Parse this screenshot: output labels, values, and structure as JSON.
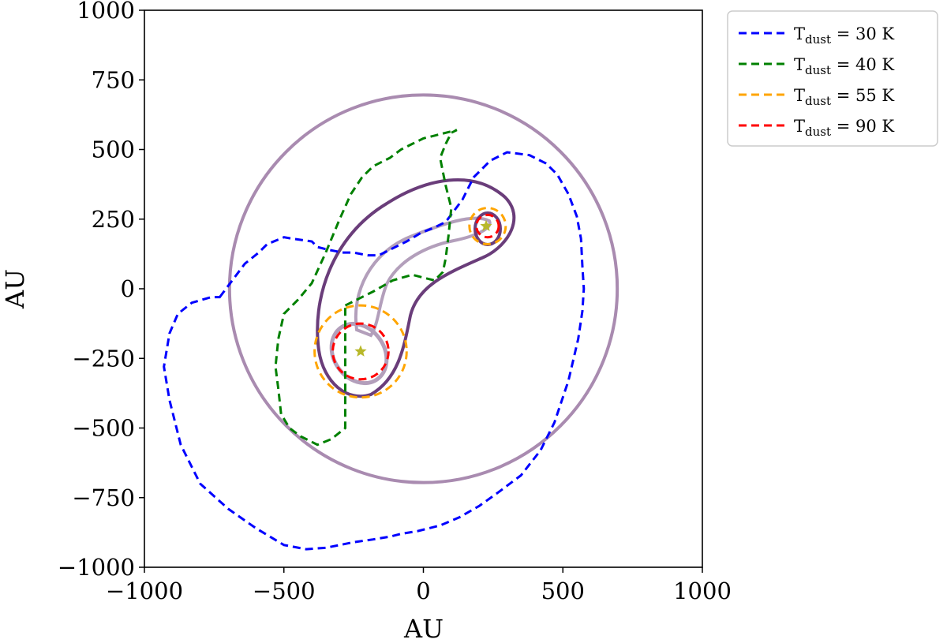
{
  "chart_data": {
    "type": "line",
    "xlabel": "AU",
    "ylabel": "AU",
    "xlim": [
      -1000,
      1000
    ],
    "ylim": [
      -1000,
      1000
    ],
    "xticks": [
      "−1000",
      "−500",
      "0",
      "500",
      "1000"
    ],
    "xtick_values": [
      -1000,
      -500,
      0,
      500,
      1000
    ],
    "yticks": [
      "1000",
      "750",
      "500",
      "250",
      "0",
      "−250",
      "−500",
      "−750",
      "−1000"
    ],
    "ytick_values": [
      1000,
      750,
      500,
      250,
      0,
      -250,
      -500,
      -750,
      -1000
    ],
    "grid": false,
    "legend_position": "outside-top-right",
    "legend": [
      {
        "prefix": "T",
        "subscript": "dust",
        "suffix": " = 30 K",
        "color": "#0000ff",
        "dash": true
      },
      {
        "prefix": "T",
        "subscript": "dust",
        "suffix": " = 40 K",
        "color": "#008000",
        "dash": true
      },
      {
        "prefix": "T",
        "subscript": "dust",
        "suffix": " = 55 K",
        "color": "#ffa500",
        "dash": true
      },
      {
        "prefix": "T",
        "subscript": "dust",
        "suffix": " = 90 K",
        "color": "#ff0000",
        "dash": true
      }
    ],
    "series": [
      {
        "name": "T_dust = 30 K",
        "color": "#0000ff",
        "style": "dashed",
        "x": [
          -730,
          -640,
          -590,
          -560,
          -500,
          -470,
          -400,
          -380,
          -340,
          -290,
          -250,
          -200,
          -160,
          -120,
          -80,
          -60,
          -10,
          40,
          80,
          110,
          140,
          180,
          240,
          300,
          380,
          440,
          480,
          520,
          550,
          565,
          570,
          575,
          570,
          555,
          520,
          470,
          420,
          350,
          270,
          200,
          130,
          60,
          -20,
          -80,
          -120,
          -180,
          -250,
          -300,
          -350,
          -420,
          -500,
          -600,
          -700,
          -800,
          -870,
          -910,
          -930,
          -910,
          -880,
          -830,
          -760
        ],
        "y": [
          -30,
          90,
          130,
          160,
          185,
          180,
          170,
          150,
          140,
          130,
          130,
          120,
          120,
          140,
          160,
          170,
          200,
          220,
          240,
          280,
          320,
          400,
          460,
          490,
          480,
          450,
          410,
          340,
          260,
          180,
          80,
          0,
          -80,
          -180,
          -330,
          -480,
          -580,
          -670,
          -730,
          -780,
          -820,
          -850,
          -870,
          -880,
          -890,
          -900,
          -910,
          -920,
          -930,
          -935,
          -920,
          -860,
          -790,
          -700,
          -560,
          -400,
          -280,
          -160,
          -90,
          -50,
          -30
        ]
      },
      {
        "name": "T_dust = 40 K",
        "color": "#008000",
        "style": "dashed",
        "x": [
          -280,
          -180,
          -110,
          -40,
          0,
          40,
          70,
          80,
          90,
          100,
          80,
          70,
          60,
          80,
          100,
          120,
          80,
          40,
          0,
          -40,
          -80,
          -120,
          -180,
          -220,
          -260,
          -300,
          -350,
          -400,
          -450,
          -500,
          -520,
          -530,
          -520,
          -510,
          -480,
          -440,
          -380,
          -330,
          -280
        ],
        "y": [
          -60,
          -10,
          30,
          50,
          40,
          30,
          60,
          110,
          190,
          290,
          370,
          420,
          470,
          520,
          560,
          570,
          560,
          550,
          540,
          520,
          500,
          470,
          440,
          400,
          340,
          250,
          130,
          20,
          -40,
          -90,
          -180,
          -280,
          -360,
          -450,
          -500,
          -530,
          -560,
          -540,
          -500
        ],
        "transform": "rotated"
      },
      {
        "name": "T_dust = 55 K",
        "color": "#ffa500",
        "style": "dashed",
        "shape": "circles",
        "circles": [
          {
            "cx": 230,
            "cy": 225,
            "r": 65
          },
          {
            "cx": -225,
            "cy": -225,
            "r": 165
          }
        ]
      },
      {
        "name": "T_dust = 90 K",
        "color": "#ff0000",
        "style": "dashed",
        "shape": "circles",
        "circles": [
          {
            "cx": 230,
            "cy": 225,
            "r": 40
          },
          {
            "cx": -225,
            "cy": -225,
            "r": 100
          }
        ]
      }
    ],
    "reference_circle": {
      "cx": 0,
      "cy": 0,
      "r": 695,
      "color": "#a98bb0"
    },
    "stars": [
      {
        "x": 225,
        "y": 225,
        "color": "#b8b82a"
      },
      {
        "x": -225,
        "y": -225,
        "color": "#b8b82a"
      }
    ]
  }
}
